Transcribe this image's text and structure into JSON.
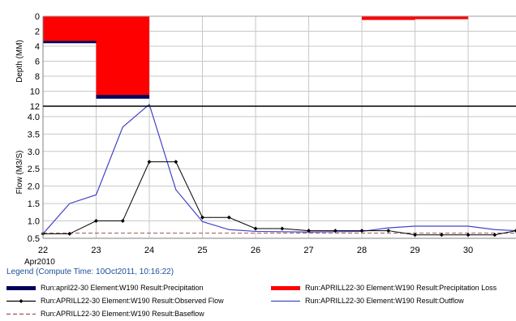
{
  "chart_data": [
    {
      "type": "bar",
      "ylabel": "Depth (MM)",
      "ylim": [
        0,
        12
      ],
      "y_inverted": true,
      "yticks": [
        "0",
        "2",
        "4",
        "6",
        "8",
        "10",
        "12"
      ],
      "series": [
        {
          "name": "Run:april22-30 Element:W190 Result:Precipitation",
          "color": "#00005c",
          "bars": [
            {
              "x0": 22.0,
              "x1": 23.0,
              "value": 3.6
            },
            {
              "x0": 23.0,
              "x1": 24.0,
              "value": 11.0
            }
          ]
        },
        {
          "name": "Run:APRILL22-30 Element:W190 Result:Precipitation Loss",
          "color": "#ff0000",
          "bars": [
            {
              "x0": 22.0,
              "x1": 23.0,
              "value": 3.3
            },
            {
              "x0": 23.0,
              "x1": 24.0,
              "value": 10.5
            },
            {
              "x0": 28.0,
              "x1": 29.0,
              "value": 0.5
            },
            {
              "x0": 29.0,
              "x1": 30.0,
              "value": 0.4
            }
          ]
        }
      ]
    },
    {
      "type": "line",
      "ylabel": "Flow (M3/S)",
      "xlabel": "Apr2010",
      "ylim": [
        0.5,
        4.3
      ],
      "xlim": [
        22,
        30.9
      ],
      "xticks": [
        "22",
        "23",
        "24",
        "25",
        "26",
        "27",
        "28",
        "29",
        "30"
      ],
      "yticks": [
        "0.5",
        "1.0",
        "1.5",
        "2.0",
        "2.5",
        "3.0",
        "3.5",
        "4.0"
      ],
      "series": [
        {
          "name": "Run:APRILL22-30 Element:W190 Result:Observed Flow",
          "color": "#000000",
          "marker": "diamond",
          "x": [
            22.0,
            22.5,
            23.0,
            23.5,
            24.0,
            24.5,
            25.0,
            25.5,
            26.0,
            26.5,
            27.0,
            27.5,
            28.0,
            28.5,
            29.0,
            29.5,
            30.0,
            30.5,
            30.9
          ],
          "y": [
            0.63,
            0.63,
            1.0,
            1.0,
            2.7,
            2.7,
            1.1,
            1.1,
            0.78,
            0.78,
            0.72,
            0.72,
            0.72,
            0.72,
            0.6,
            0.6,
            0.6,
            0.6,
            0.72
          ]
        },
        {
          "name": "Run:APRILL22-30 Element:W190 Result:Outflow",
          "color": "#4444cc",
          "x": [
            22.0,
            22.5,
            23.0,
            23.5,
            24.0,
            24.5,
            25.0,
            25.5,
            26.0,
            27.0,
            28.0,
            28.5,
            29.0,
            30.0,
            30.5,
            30.9
          ],
          "y": [
            0.63,
            1.5,
            1.75,
            3.7,
            4.35,
            1.9,
            0.98,
            0.75,
            0.7,
            0.68,
            0.7,
            0.8,
            0.85,
            0.85,
            0.75,
            0.72
          ]
        },
        {
          "name": "Run:APRILL22-30 Element:W190 Result:Baseflow",
          "color": "#a05050",
          "dashed": true,
          "x": [
            22.0,
            30.9
          ],
          "y": [
            0.65,
            0.65
          ]
        }
      ]
    }
  ],
  "legend": {
    "title": "Legend (Compute Time: 10Oct2011, 10:16:22)"
  }
}
